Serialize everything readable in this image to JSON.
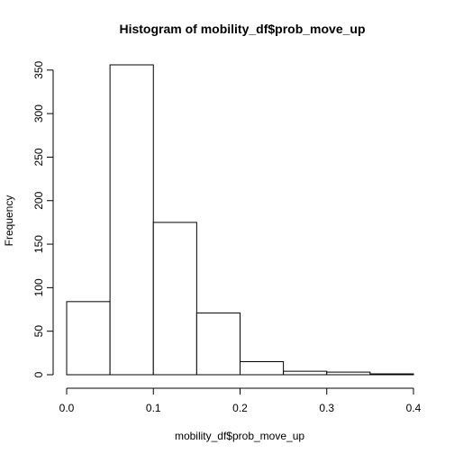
{
  "chart_data": {
    "type": "bar",
    "title": "Histogram of mobility_df$prob_move_up",
    "xlabel": "mobility_df$prob_move_up",
    "ylabel": "Frequency",
    "bins": [
      {
        "x_start": 0.0,
        "x_end": 0.05,
        "count": 84
      },
      {
        "x_start": 0.05,
        "x_end": 0.1,
        "count": 356
      },
      {
        "x_start": 0.1,
        "x_end": 0.15,
        "count": 175
      },
      {
        "x_start": 0.15,
        "x_end": 0.2,
        "count": 71
      },
      {
        "x_start": 0.2,
        "x_end": 0.25,
        "count": 15
      },
      {
        "x_start": 0.25,
        "x_end": 0.3,
        "count": 4
      },
      {
        "x_start": 0.3,
        "x_end": 0.35,
        "count": 3
      },
      {
        "x_start": 0.35,
        "x_end": 0.4,
        "count": 1
      }
    ],
    "xlim": [
      0,
      0.4
    ],
    "ylim": [
      0,
      356
    ],
    "x_ticks": [
      0.0,
      0.1,
      0.2,
      0.3,
      0.4
    ],
    "x_tick_labels": [
      "0.0",
      "0.1",
      "0.2",
      "0.3",
      "0.4"
    ],
    "y_ticks": [
      0,
      50,
      100,
      150,
      200,
      250,
      300,
      350
    ],
    "y_tick_labels": [
      "0",
      "50",
      "100",
      "150",
      "200",
      "250",
      "300",
      "350"
    ],
    "grid": false,
    "legend": "none"
  }
}
